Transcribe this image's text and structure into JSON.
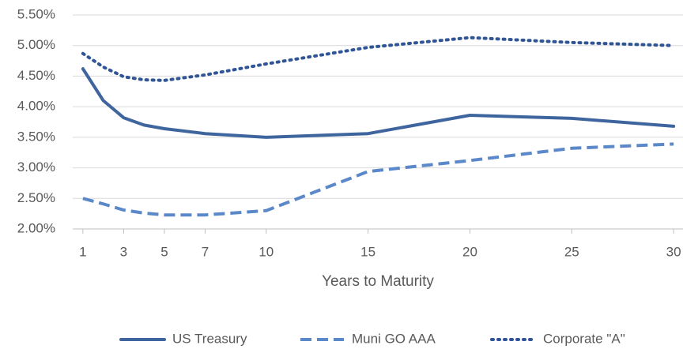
{
  "chart_data": {
    "type": "line",
    "x_label": "Years to Maturity",
    "x": [
      1,
      2,
      3,
      4,
      5,
      7,
      10,
      15,
      20,
      25,
      30
    ],
    "series": [
      {
        "name": "US Treasury",
        "color": "#3f659e",
        "dash": "solid",
        "values": [
          4.62,
          4.1,
          3.82,
          3.7,
          3.64,
          3.56,
          3.5,
          3.56,
          3.86,
          3.81,
          3.68
        ]
      },
      {
        "name": "Muni GO AAA",
        "color": "#5a88c9",
        "dash": "dashed",
        "values": [
          2.5,
          2.41,
          2.31,
          2.26,
          2.23,
          2.23,
          2.3,
          2.94,
          3.12,
          3.32,
          3.39
        ]
      },
      {
        "name": "Corporate \"A\"",
        "color": "#2f5597",
        "dash": "dotted",
        "values": [
          4.87,
          4.65,
          4.49,
          4.44,
          4.43,
          4.52,
          4.7,
          4.97,
          5.13,
          5.05,
          5.0
        ]
      }
    ],
    "xlim": [
      0.5,
      30.5
    ],
    "xticks": [
      1,
      3,
      5,
      7,
      10,
      15,
      20,
      25,
      30
    ],
    "ylim": [
      2.0,
      5.5
    ],
    "yticks": [
      {
        "value": 2.0,
        "label": "2.00%"
      },
      {
        "value": 2.5,
        "label": "2.50%"
      },
      {
        "value": 3.0,
        "label": "3.00%"
      },
      {
        "value": 3.5,
        "label": "3.50%"
      },
      {
        "value": 4.0,
        "label": "4.00%"
      },
      {
        "value": 4.5,
        "label": "4.50%"
      },
      {
        "value": 5.0,
        "label": "5.00%"
      },
      {
        "value": 5.5,
        "label": "5.50%"
      }
    ],
    "legend": "bottom"
  }
}
